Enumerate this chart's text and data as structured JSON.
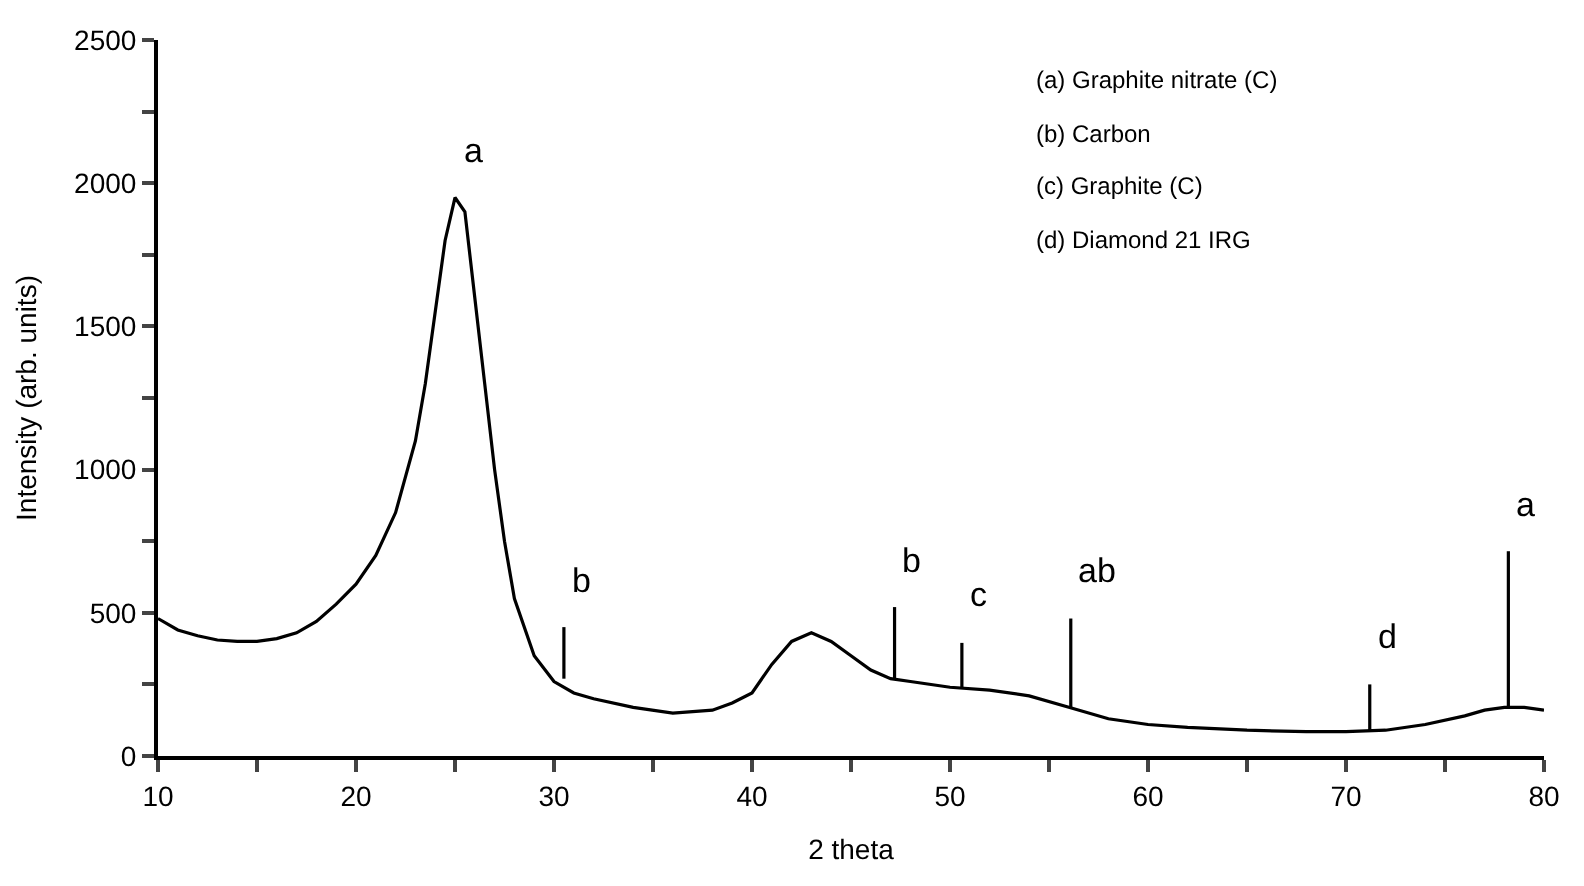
{
  "chart_data": {
    "type": "line",
    "xlabel": "2 theta",
    "ylabel": "Intensity (arb. units)",
    "xlim": [
      10,
      80
    ],
    "ylim": [
      0,
      2500
    ],
    "xticks": [
      10,
      {
        "value": 15,
        "label": null
      },
      20,
      {
        "value": 25,
        "label": null
      },
      30,
      {
        "value": 35,
        "label": null
      },
      40,
      {
        "value": 45,
        "label": null
      },
      50,
      {
        "value": 55,
        "label": null
      },
      60,
      {
        "value": 65,
        "label": null
      },
      70,
      {
        "value": 75,
        "label": null
      },
      80
    ],
    "yticks": [
      0,
      {
        "value": 250,
        "label": null
      },
      500,
      {
        "value": 750,
        "label": null
      },
      1000,
      {
        "value": 1250,
        "label": null
      },
      1500,
      {
        "value": 1750,
        "label": null
      },
      2000,
      {
        "value": 2250,
        "label": null
      },
      2500
    ],
    "marker": "none",
    "line_style": "solid",
    "series": [
      {
        "color": "#000000",
        "x": [
          10,
          11,
          12,
          13,
          14,
          15,
          16,
          17,
          18,
          19,
          20,
          21,
          22,
          23,
          23.5,
          24,
          24.5,
          25,
          25.5,
          26,
          26.5,
          27,
          27.5,
          28,
          29,
          30,
          31,
          32,
          34,
          36,
          38,
          39,
          40,
          41,
          42,
          43,
          44,
          45,
          46,
          47,
          48,
          50,
          52,
          54,
          56,
          58,
          60,
          62,
          65,
          68,
          70,
          72,
          74,
          76,
          77,
          78,
          79,
          80
        ],
        "values": [
          480,
          440,
          420,
          405,
          400,
          400,
          410,
          430,
          470,
          530,
          600,
          700,
          850,
          1100,
          1300,
          1550,
          1800,
          1950,
          1900,
          1600,
          1300,
          1000,
          750,
          550,
          350,
          260,
          220,
          200,
          170,
          150,
          160,
          185,
          220,
          320,
          400,
          430,
          400,
          350,
          300,
          270,
          260,
          240,
          230,
          210,
          170,
          130,
          110,
          100,
          90,
          85,
          85,
          90,
          110,
          140,
          160,
          170,
          170,
          160
        ]
      },
      {
        "color": "#000000",
        "x": [
          30.5,
          30.5
        ],
        "values": [
          270,
          450
        ]
      },
      {
        "color": "#000000",
        "x": [
          47.2,
          47.2
        ],
        "values": [
          270,
          520
        ]
      },
      {
        "color": "#000000",
        "x": [
          50.6,
          50.6
        ],
        "values": [
          240,
          395
        ]
      },
      {
        "color": "#000000",
        "x": [
          56.1,
          56.1
        ],
        "values": [
          170,
          480
        ]
      },
      {
        "color": "#000000",
        "x": [
          71.2,
          71.2
        ],
        "values": [
          85,
          250
        ]
      },
      {
        "color": "#000000",
        "x": [
          78.2,
          78.2
        ],
        "values": [
          170,
          715
        ]
      }
    ],
    "annotations": [
      {
        "text": "a",
        "x": 25,
        "y": 1950
      },
      {
        "text": "b",
        "x": 30.5,
        "y": 450
      },
      {
        "text": "b",
        "x": 47.2,
        "y": 520
      },
      {
        "text": "c",
        "x": 50.6,
        "y": 395
      },
      {
        "text": "ab",
        "x": 56.1,
        "y": 480
      },
      {
        "text": "d",
        "x": 71.2,
        "y": 250
      },
      {
        "text": "a",
        "x": 78.2,
        "y": 715
      },
      "(a) Graphite nitrate (C)",
      "(b) Carbon",
      "(c) Graphite (C)",
      "(d) Diamond 21 IRG"
    ]
  }
}
